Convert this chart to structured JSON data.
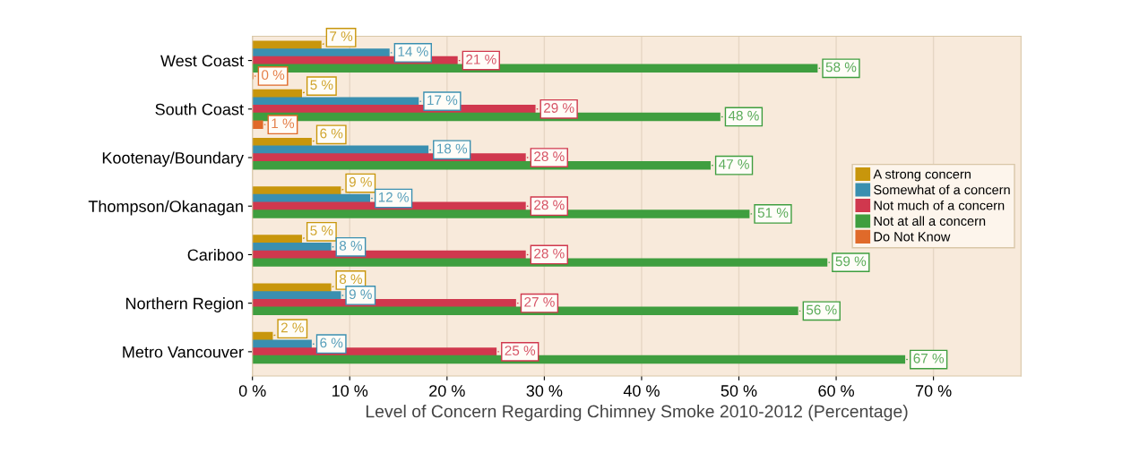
{
  "chart_data": {
    "type": "bar",
    "orientation": "horizontal",
    "xlabel": "Level of Concern Regarding Chimney Smoke 2010-2012 (Percentage)",
    "categories": [
      "West Coast",
      "South Coast",
      "Kootenay/Boundary",
      "Thompson/Okanagan",
      "Cariboo",
      "Northern Region",
      "Metro Vancouver"
    ],
    "series": [
      {
        "name": "A strong concern",
        "color": "#c8960c",
        "values": [
          7,
          5,
          6,
          9,
          5,
          8,
          2
        ],
        "value_labels": [
          "7 %",
          "5 %",
          "6 %",
          "9 %",
          "5 %",
          "8 %",
          "2 %"
        ]
      },
      {
        "name": "Somewhat of a concern",
        "color": "#3a8fb0",
        "values": [
          14,
          17,
          18,
          12,
          8,
          9,
          6
        ],
        "value_labels": [
          "14 %",
          "17 %",
          "18 %",
          "12 %",
          "8 %",
          "9 %",
          "6 %"
        ]
      },
      {
        "name": "Not much of a concern",
        "color": "#d0384e",
        "values": [
          21,
          29,
          28,
          28,
          28,
          27,
          25
        ],
        "value_labels": [
          "21 %",
          "29 %",
          "28 %",
          "28 %",
          "28 %",
          "27 %",
          "25 %"
        ]
      },
      {
        "name": "Not at all a concern",
        "color": "#3f9e3f",
        "values": [
          58,
          48,
          47,
          51,
          59,
          56,
          67
        ],
        "value_labels": [
          "58 %",
          "48 %",
          "47 %",
          "51 %",
          "59 %",
          "56 %",
          "67 %"
        ]
      },
      {
        "name": "Do Not Know",
        "color": "#e06a2a",
        "values": [
          0,
          1,
          null,
          null,
          null,
          null,
          null
        ],
        "value_labels": [
          "0 %",
          "1 %",
          null,
          null,
          null,
          null,
          null
        ]
      }
    ],
    "xlim": [
      0,
      79
    ],
    "xticks": [
      {
        "value": 0,
        "label": "0 %"
      },
      {
        "value": 10,
        "label": "10 %"
      },
      {
        "value": 20,
        "label": "20 %"
      },
      {
        "value": 30,
        "label": "30 %"
      },
      {
        "value": 40,
        "label": "40 %"
      },
      {
        "value": 50,
        "label": "50 %"
      },
      {
        "value": 60,
        "label": "60 %"
      },
      {
        "value": 70,
        "label": "70 %"
      }
    ],
    "grid": "x",
    "legend": "center right"
  }
}
